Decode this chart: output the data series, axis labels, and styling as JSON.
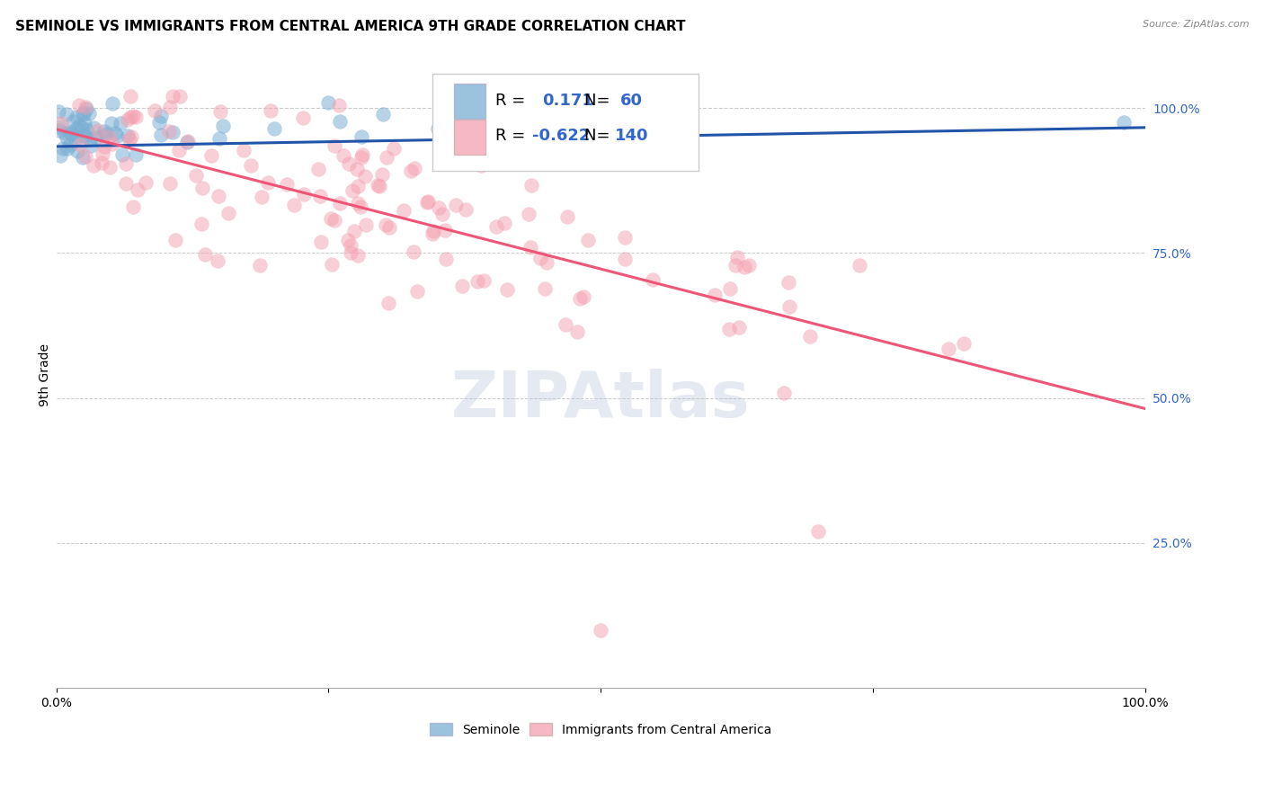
{
  "title": "SEMINOLE VS IMMIGRANTS FROM CENTRAL AMERICA 9TH GRADE CORRELATION CHART",
  "source": "Source: ZipAtlas.com",
  "ylabel": "9th Grade",
  "blue_R": "0.171",
  "blue_N": "60",
  "pink_R": "-0.622",
  "pink_N": "140",
  "blue_color": "#7BAFD4",
  "pink_color": "#F4A0B0",
  "blue_line_color": "#2255AA",
  "pink_line_color": "#EE5577",
  "watermark": "ZIPAtlas",
  "ytick_positions": [
    1.0,
    0.75,
    0.5,
    0.25
  ],
  "ytick_labels": [
    "100.0%",
    "75.0%",
    "50.0%",
    "25.0%"
  ],
  "xlim": [
    0.0,
    1.0
  ],
  "ylim": [
    0.0,
    1.08
  ],
  "background_color": "#ffffff",
  "grid_color": "#cccccc",
  "title_fontsize": 11,
  "axis_fontsize": 9,
  "legend_fontsize": 13
}
